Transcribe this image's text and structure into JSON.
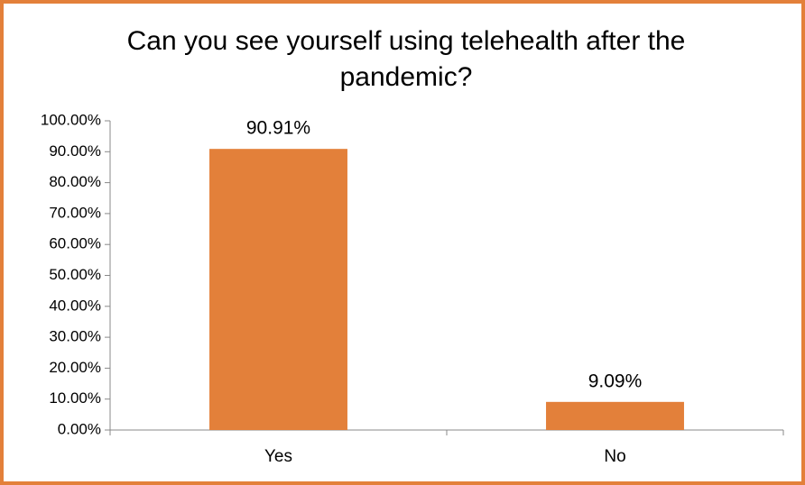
{
  "chart_data": {
    "type": "bar",
    "title": "Can you see yourself using telehealth after the pandemic?",
    "categories": [
      "Yes",
      "No"
    ],
    "values": [
      90.91,
      9.09
    ],
    "value_labels": [
      "90.91%",
      "9.09%"
    ],
    "color": "#e3803a",
    "ylim": [
      0,
      100
    ],
    "yticks": [
      {
        "value": 0,
        "label": "0.00%"
      },
      {
        "value": 10,
        "label": "10.00%"
      },
      {
        "value": 20,
        "label": "20.00%"
      },
      {
        "value": 30,
        "label": "30.00%"
      },
      {
        "value": 40,
        "label": "40.00%"
      },
      {
        "value": 50,
        "label": "50.00%"
      },
      {
        "value": 60,
        "label": "60.00%"
      },
      {
        "value": 70,
        "label": "70.00%"
      },
      {
        "value": 80,
        "label": "80.00%"
      },
      {
        "value": 90,
        "label": "90.00%"
      },
      {
        "value": 100,
        "label": "100.00%"
      }
    ]
  }
}
